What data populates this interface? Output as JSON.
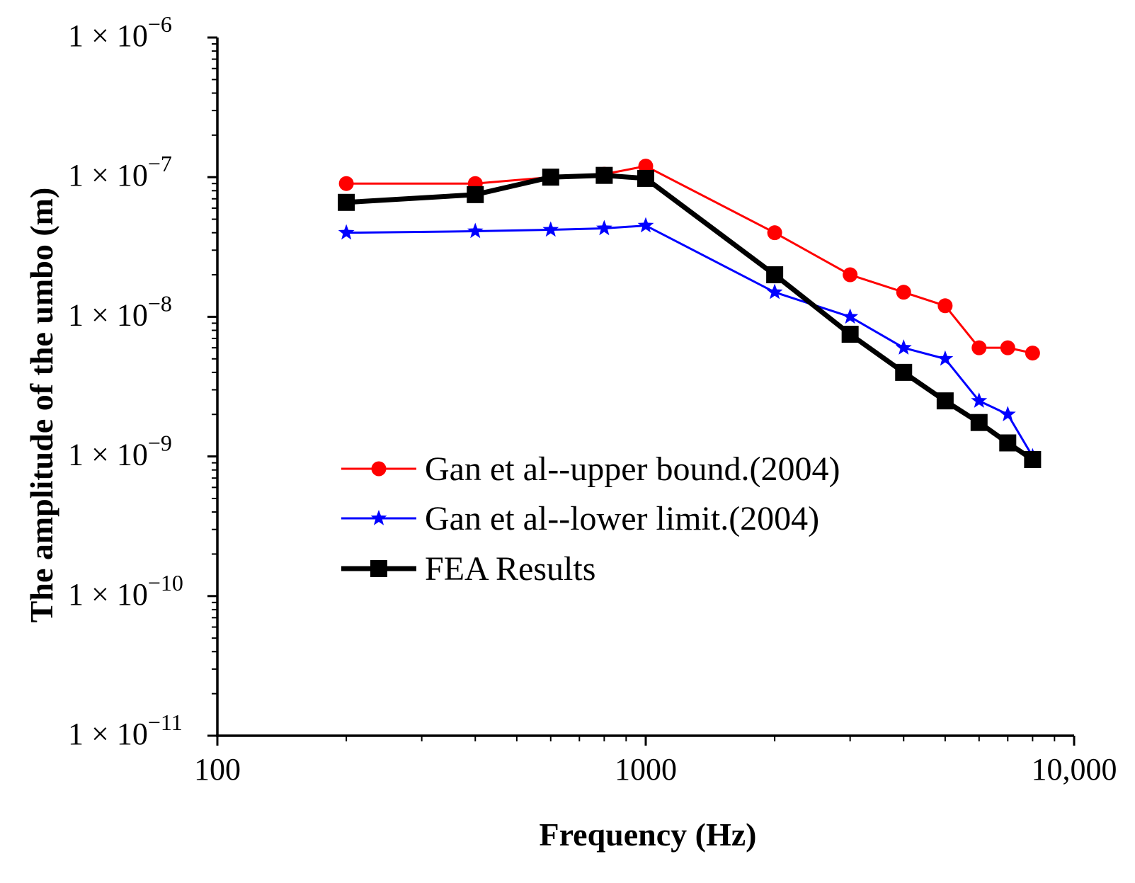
{
  "chart_data": {
    "type": "line",
    "xscale": "log",
    "yscale": "log",
    "xlim": [
      100,
      10000
    ],
    "ylim": [
      1e-11,
      1e-06
    ],
    "xlabel": "Frequency (Hz)",
    "ylabel": "The amplitude of the umbo (m)",
    "x_ticks": [
      {
        "value": 100,
        "label": "100"
      },
      {
        "value": 1000,
        "label": "1000"
      },
      {
        "value": 10000,
        "label": "10,000"
      }
    ],
    "y_ticks": [
      {
        "value": 1e-06,
        "base": "1 × 10",
        "exp": "−6"
      },
      {
        "value": 1e-07,
        "base": "1 × 10",
        "exp": "−7"
      },
      {
        "value": 1e-08,
        "base": "1 × 10",
        "exp": "−8"
      },
      {
        "value": 1e-09,
        "base": "1 × 10",
        "exp": "−9"
      },
      {
        "value": 1e-10,
        "base": "1 × 10",
        "exp": "−10"
      },
      {
        "value": 1e-11,
        "base": "1 × 10",
        "exp": "−11"
      }
    ],
    "legend_position": "center",
    "series": [
      {
        "name": "Gan et al--upper bound.(2004)",
        "color": "#ff0000",
        "marker": "circle",
        "line_width": "thin",
        "x": [
          200,
          400,
          600,
          800,
          1000,
          2000,
          3000,
          4000,
          5000,
          6000,
          7000,
          8000
        ],
        "y": [
          9e-08,
          9e-08,
          1e-07,
          1.05e-07,
          1.2e-07,
          4e-08,
          2e-08,
          1.5e-08,
          1.2e-08,
          6e-09,
          6e-09,
          5.5e-09
        ]
      },
      {
        "name": "Gan et al--lower limit.(2004)",
        "color": "#0000ff",
        "marker": "star",
        "line_width": "thin",
        "x": [
          200,
          400,
          600,
          800,
          1000,
          2000,
          3000,
          4000,
          5000,
          6000,
          7000,
          8000
        ],
        "y": [
          4e-08,
          4.1e-08,
          4.2e-08,
          4.3e-08,
          4.5e-08,
          1.5e-08,
          1e-08,
          6e-09,
          5e-09,
          2.5e-09,
          2e-09,
          1e-09
        ]
      },
      {
        "name": "FEA Results",
        "color": "#000000",
        "marker": "square",
        "line_width": "thick",
        "x": [
          200,
          400,
          600,
          800,
          1000,
          2000,
          3000,
          4000,
          5000,
          6000,
          7000,
          8000
        ],
        "y": [
          6.6e-08,
          7.5e-08,
          1e-07,
          1.03e-07,
          9.8e-08,
          2e-08,
          7.5e-09,
          4e-09,
          2.5e-09,
          1.75e-09,
          1.25e-09,
          9.5e-10
        ]
      }
    ]
  }
}
